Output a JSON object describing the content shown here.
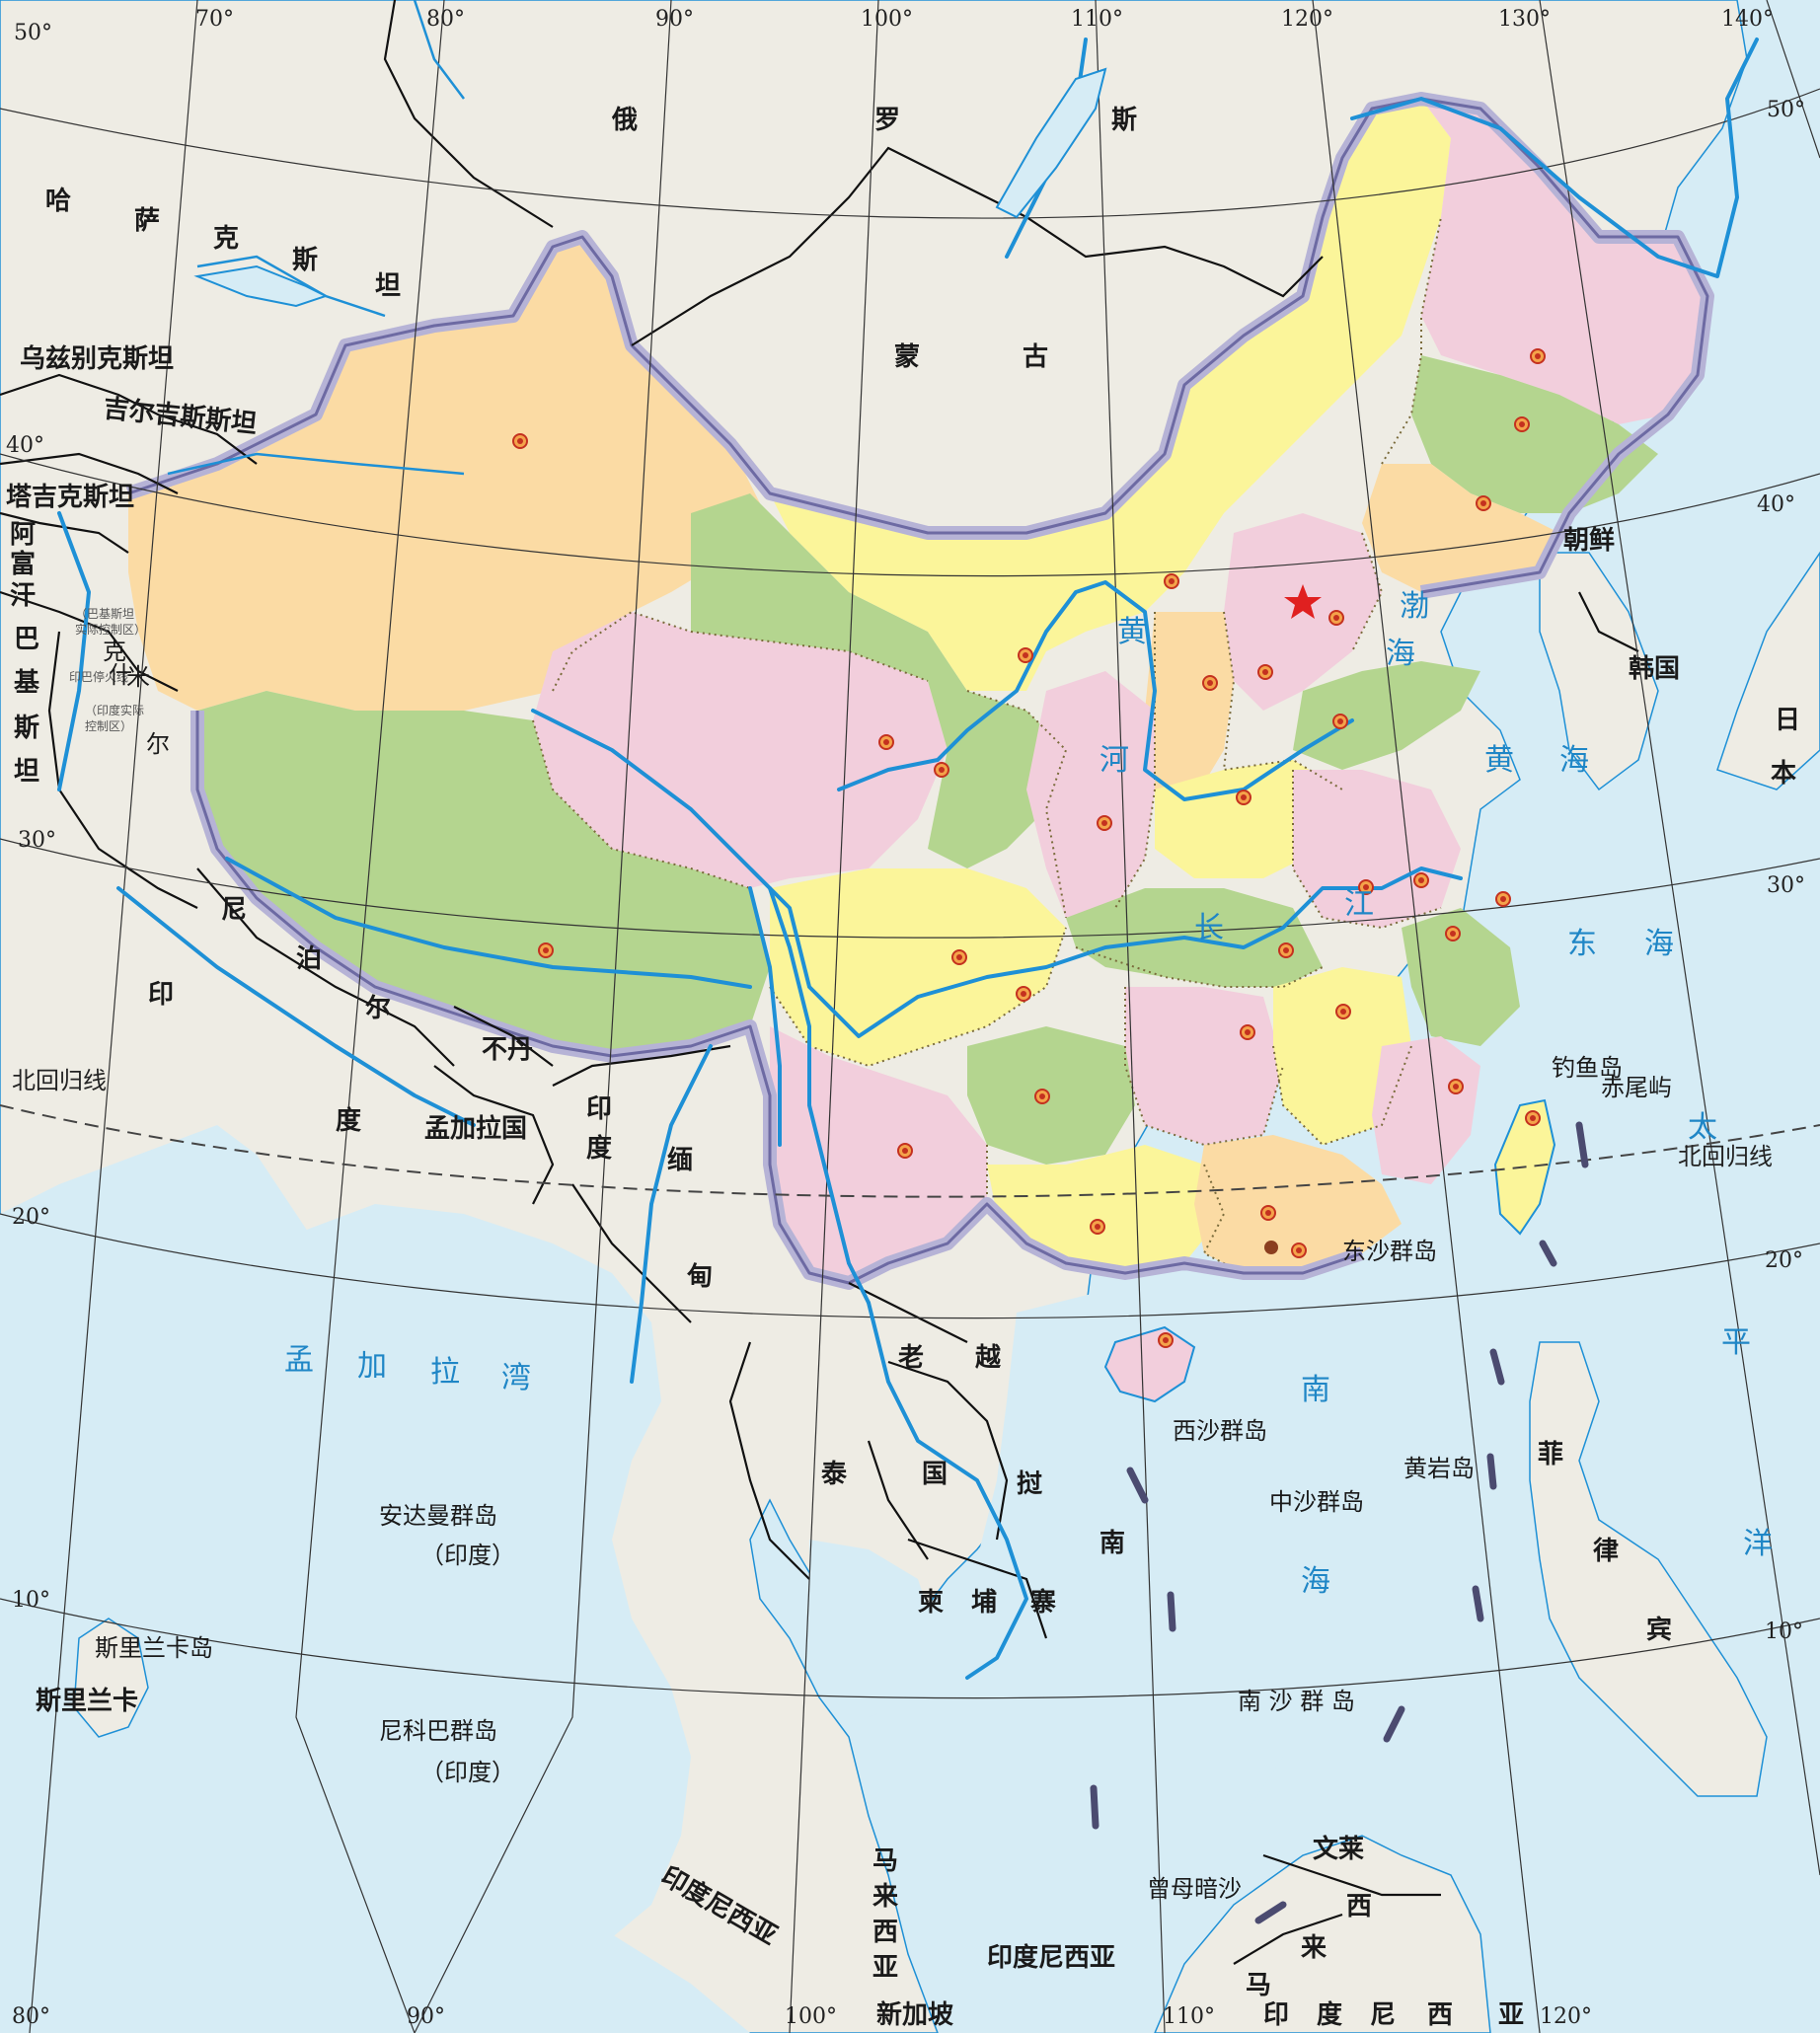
{
  "colors": {
    "sea": "#d6ecf5",
    "land_foreign": "#eeece4",
    "prov_yellow": "#fbf59a",
    "prov_pink": "#f2cedc",
    "prov_green": "#b4d58f",
    "prov_orange": "#fbdba4",
    "river": "#1e90d6",
    "water_label": "#1f86c6",
    "capital_star": "#e02020"
  },
  "coordinates": {
    "top": [
      "70°",
      "80°",
      "90°",
      "100°",
      "110°",
      "120°",
      "130°",
      "140°"
    ],
    "bottom": [
      "80°",
      "90°",
      "100°",
      "110°",
      "120°"
    ],
    "left": [
      "50°",
      "40°",
      "30°",
      "20°",
      "10°"
    ],
    "right": [
      "50°",
      "40°",
      "30°",
      "20°",
      "10°"
    ]
  },
  "lines": {
    "tropic_left": "北回归线",
    "tropic_right": "北回归线"
  },
  "countries": {
    "russia": [
      "俄",
      "罗",
      "斯"
    ],
    "mongolia": [
      "蒙",
      "古"
    ],
    "kazakhstan": [
      "哈",
      "萨",
      "克",
      "斯",
      "坦"
    ],
    "uzbekistan": "乌兹别克斯坦",
    "kyrgyzstan": "吉尔吉斯斯坦",
    "tajikistan": "塔吉克斯坦",
    "afghanistan": [
      "阿",
      "富",
      "汗"
    ],
    "pakistan": [
      "巴",
      "基",
      "斯",
      "坦"
    ],
    "nepal": [
      "尼",
      "泊",
      "尔"
    ],
    "bhutan": "不丹",
    "india_west": [
      "印",
      "度"
    ],
    "india_east": [
      "印",
      "度"
    ],
    "bangladesh": "孟加拉国",
    "myanmar": [
      "缅",
      "甸"
    ],
    "laos": [
      "老",
      "越"
    ],
    "thailand": [
      "泰",
      "国"
    ],
    "vietnam": [
      "挝",
      "南"
    ],
    "cambodia": [
      "柬",
      "埔",
      "寨"
    ],
    "north_korea": "朝鲜",
    "south_korea": "韩国",
    "japan": [
      "日",
      "本"
    ],
    "philippines": [
      "菲",
      "律",
      "宾"
    ],
    "sri_lanka": "斯里兰卡",
    "malaysia_west": [
      "马",
      "来",
      "西",
      "亚"
    ],
    "malaysia_east": [
      "西",
      "来",
      "马"
    ],
    "brunei": "文莱",
    "singapore": "新加坡",
    "indonesia_west": "印度尼西亚",
    "indonesia_center": "印度尼西亚",
    "indonesia_bottom": [
      "印",
      "度",
      "尼",
      "西",
      "亚"
    ]
  },
  "kashmir": {
    "pak_control": [
      "（巴基斯坦",
      "实际控制区）"
    ],
    "ceasefire_line": [
      "印巴停火线"
    ],
    "india_control": [
      "（印度实际",
      "控制区）"
    ],
    "kashmir_chars": [
      "克",
      "什",
      "米",
      "尔"
    ]
  },
  "islands": {
    "andaman": "安达曼群岛",
    "andaman_note": "（印度）",
    "nicobar": "尼科巴群岛",
    "nicobar_note": "（印度）",
    "sri_lanka_island": "斯里兰卡岛",
    "diaoyu": "钓鱼岛",
    "chiwei": "赤尾屿",
    "dongsha": "东沙群岛",
    "xisha": "西沙群岛",
    "zhongsha": "中沙群岛",
    "huangyan": "黄岩岛",
    "nansha": "南 沙 群 岛",
    "zengmu": "曾母暗沙"
  },
  "water": {
    "bohai": [
      "渤",
      "海"
    ],
    "yellow_sea": [
      "黄",
      "海"
    ],
    "east_sea": [
      "东",
      "海"
    ],
    "south_sea": [
      "南",
      "海"
    ],
    "bay_bengal": [
      "孟",
      "加",
      "拉",
      "湾"
    ],
    "pacific": [
      "太",
      "平",
      "洋"
    ],
    "yellow_river": [
      "黄",
      "河"
    ],
    "yangtze": [
      "长",
      "江"
    ]
  }
}
